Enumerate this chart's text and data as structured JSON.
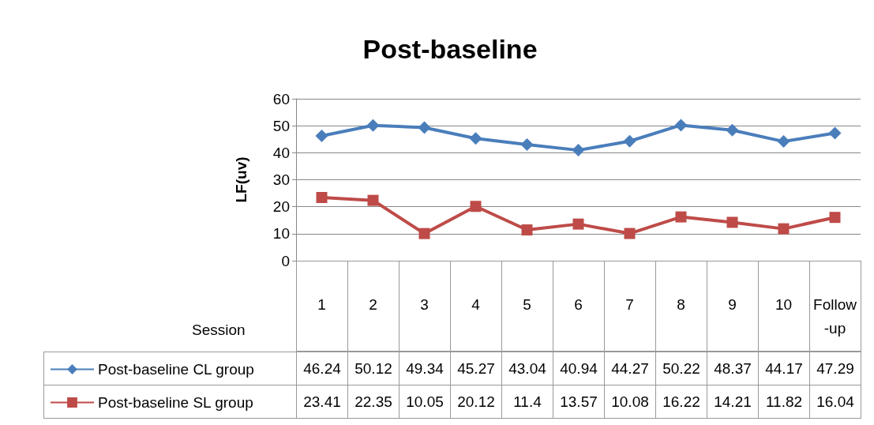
{
  "chart_data": {
    "type": "line",
    "title": "Post-baseline",
    "xlabel": "Session",
    "ylabel": "LF(uv)",
    "categories": [
      "1",
      "2",
      "3",
      "4",
      "5",
      "6",
      "7",
      "8",
      "9",
      "10",
      "Follow-up"
    ],
    "series": [
      {
        "name": "Post-baseline CL group",
        "color": "#4a7ebb",
        "marker": "diamond",
        "values": [
          46.24,
          50.12,
          49.34,
          45.27,
          43.04,
          40.94,
          44.27,
          50.22,
          48.37,
          44.17,
          47.29
        ]
      },
      {
        "name": "Post-baseline SL group",
        "color": "#be4b48",
        "marker": "square",
        "values": [
          23.41,
          22.35,
          10.05,
          20.12,
          11.4,
          13.57,
          10.08,
          16.22,
          14.21,
          11.82,
          16.04
        ]
      }
    ],
    "ylim": [
      0,
      60
    ],
    "yticks": [
      0,
      10,
      20,
      30,
      40,
      50,
      60
    ],
    "grid": "y",
    "legend": "bottom left",
    "data_labels": true,
    "line_style": "solid"
  }
}
